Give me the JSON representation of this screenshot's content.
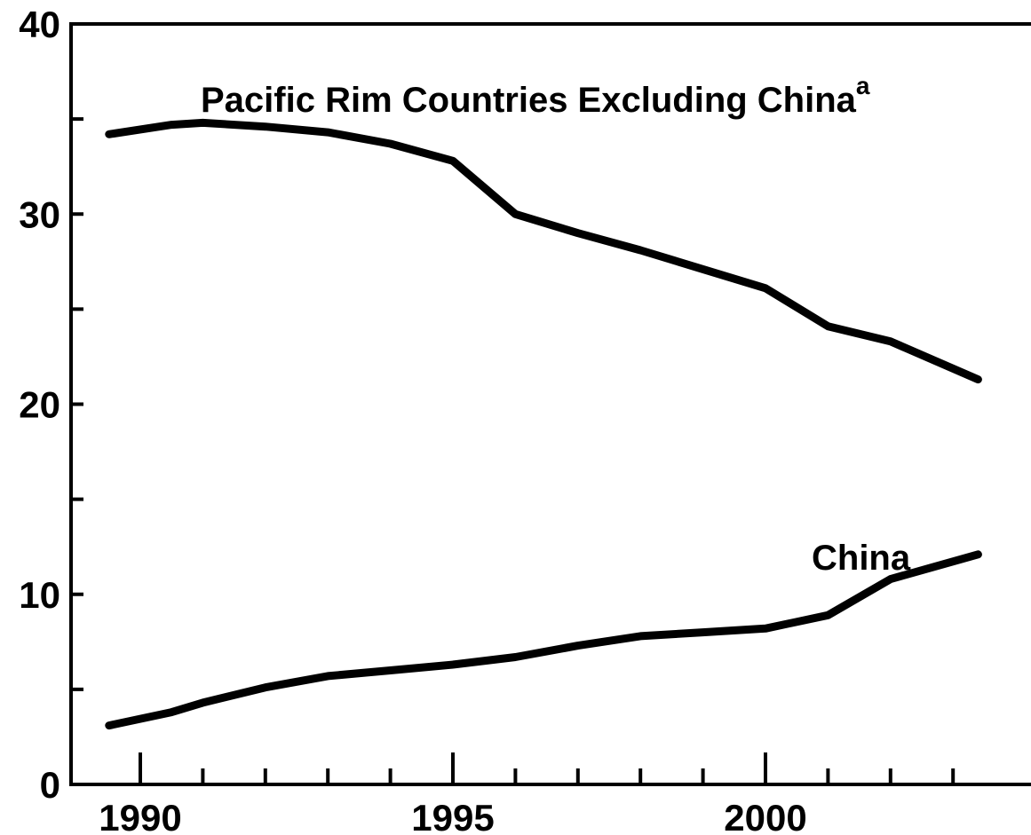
{
  "chart_data": {
    "type": "line",
    "title": "",
    "xlabel": "",
    "ylabel": "",
    "xlim": [
      1989,
      2003.8
    ],
    "ylim": [
      0,
      40
    ],
    "x_ticks_major": [
      1990,
      1995,
      2000
    ],
    "x_tick_labels": [
      "1990",
      "1995",
      "2000"
    ],
    "x_ticks_minor": [
      1991,
      1992,
      1993,
      1994,
      1996,
      1997,
      1998,
      1999,
      2001,
      2002,
      2003
    ],
    "y_ticks_major": [
      0,
      10,
      20,
      30,
      40
    ],
    "y_tick_labels": [
      "0",
      "10",
      "20",
      "30",
      "40"
    ],
    "y_ticks_minor": [
      5,
      15,
      25,
      35
    ],
    "grid": false,
    "series": [
      {
        "name": "Pacific Rim Countries Excluding China",
        "name_superscript": "a",
        "x": [
          1989.5,
          1990.5,
          1991,
          1992,
          1993,
          1994,
          1995,
          1996,
          1997,
          1998,
          1999,
          2000,
          2001,
          2002,
          2003.4
        ],
        "y": [
          34.2,
          34.7,
          34.8,
          34.6,
          34.3,
          33.7,
          32.8,
          30.0,
          29.0,
          28.1,
          27.1,
          26.1,
          24.1,
          23.3,
          21.3
        ],
        "color": "#000000"
      },
      {
        "name": "China",
        "name_superscript": "",
        "x": [
          1989.5,
          1990.5,
          1991,
          1992,
          1993,
          1994,
          1995,
          1996,
          1997,
          1998,
          1999,
          2000,
          2001,
          2002,
          2003.4
        ],
        "y": [
          3.1,
          3.8,
          4.3,
          5.1,
          5.7,
          6.0,
          6.3,
          6.7,
          7.3,
          7.8,
          8.0,
          8.2,
          8.9,
          10.8,
          12.1
        ],
        "color": "#000000"
      }
    ]
  }
}
